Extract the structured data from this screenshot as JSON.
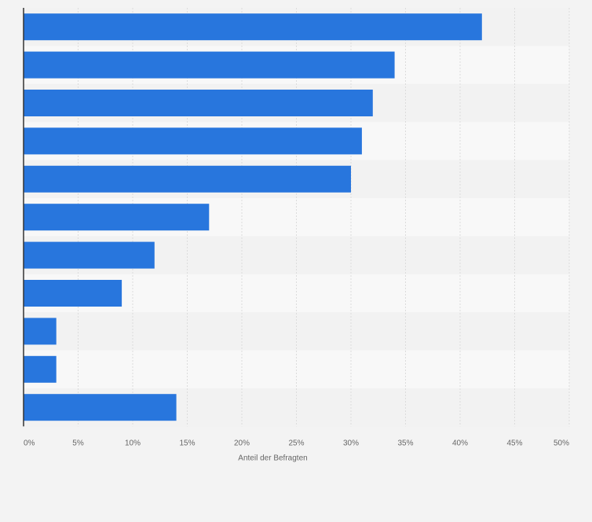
{
  "colors": {
    "background": "#f3f3f3",
    "band_dark": "#f2f2f2",
    "band_light": "#f8f8f8",
    "bar": "#2876dd",
    "gridline": "#dcdcdc",
    "axis": "#333333",
    "tick_text": "#666666"
  },
  "chart_data": {
    "type": "bar",
    "orientation": "horizontal",
    "categories": [
      "",
      "",
      "",
      "",
      "",
      "",
      "",
      "",
      "",
      "",
      ""
    ],
    "values": [
      42,
      34,
      32,
      31,
      30,
      17,
      12,
      9,
      3,
      3,
      14
    ],
    "unit": "%",
    "xlabel": "Anteil der Befragten",
    "xlim": [
      0,
      50
    ],
    "xticks": [
      "0%",
      "5%",
      "10%",
      "15%",
      "20%",
      "25%",
      "30%",
      "35%",
      "40%",
      "45%",
      "50%"
    ],
    "grid": true,
    "legend": "none"
  }
}
